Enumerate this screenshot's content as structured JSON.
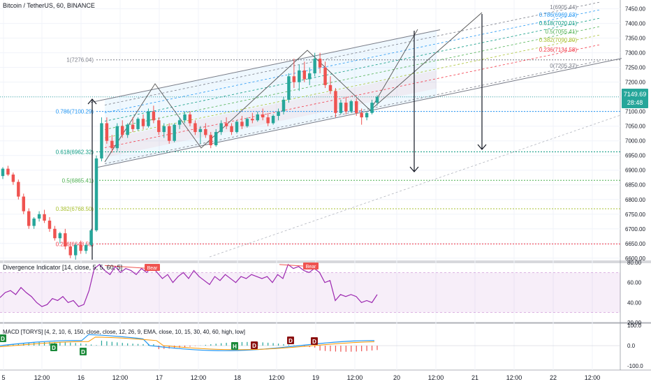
{
  "header": {
    "title": "Bitcoin / TetherUS, 60, BINANCE"
  },
  "price_badge": {
    "value": "7149.69",
    "timer": "28:48"
  },
  "colors": {
    "up": "#26a69a",
    "down": "#ef5350",
    "rsi": "#9c27b0",
    "macd": "#2196f3",
    "signal": "#ff9800",
    "badge": "#26a69a"
  },
  "chart_data": [
    {
      "type": "candlestick",
      "title": "Bitcoin / TetherUS, 60, BINANCE",
      "ylim": [
        6590,
        7480
      ],
      "y_ticks": [
        "7450.00",
        "7400.00",
        "7350.00",
        "7300.00",
        "7250.00",
        "7200.00",
        "7150.00",
        "7100.00",
        "7050.00",
        "7000.00",
        "6950.00",
        "6900.00",
        "6850.00",
        "6800.00",
        "6750.00",
        "6700.00",
        "6650.00",
        "6600.00"
      ],
      "x_ticks": [
        "5",
        "12:00",
        "16",
        "12:00",
        "17",
        "12:00",
        "18",
        "12:00",
        "19",
        "12:00",
        "20",
        "12:00",
        "21",
        "12:00",
        "22",
        "12:00"
      ],
      "candles": [
        [
          6880,
          6910,
          6870,
          6905
        ],
        [
          6905,
          6915,
          6880,
          6885
        ],
        [
          6885,
          6892,
          6850,
          6860
        ],
        [
          6860,
          6868,
          6800,
          6810
        ],
        [
          6810,
          6820,
          6750,
          6760
        ],
        [
          6760,
          6770,
          6700,
          6710
        ],
        [
          6710,
          6740,
          6700,
          6735
        ],
        [
          6735,
          6760,
          6725,
          6750
        ],
        [
          6750,
          6765,
          6720,
          6728
        ],
        [
          6728,
          6740,
          6690,
          6700
        ],
        [
          6700,
          6710,
          6660,
          6668
        ],
        [
          6668,
          6690,
          6650,
          6685
        ],
        [
          6685,
          6700,
          6630,
          6640
        ],
        [
          6640,
          6655,
          6600,
          6610
        ],
        [
          6610,
          6650,
          6595,
          6645
        ],
        [
          6645,
          6660,
          6615,
          6625
        ],
        [
          6625,
          6650,
          6615,
          6645
        ],
        [
          6645,
          6700,
          6640,
          6695
        ],
        [
          6695,
          6950,
          6690,
          6940
        ],
        [
          6940,
          7080,
          6930,
          7060
        ],
        [
          7060,
          7080,
          6990,
          7000
        ],
        [
          7000,
          7020,
          6960,
          6975
        ],
        [
          6975,
          7060,
          6965,
          7050
        ],
        [
          7050,
          7070,
          7010,
          7020
        ],
        [
          7020,
          7060,
          7010,
          7055
        ],
        [
          7055,
          7080,
          7030,
          7040
        ],
        [
          7040,
          7080,
          7035,
          7075
        ],
        [
          7075,
          7090,
          7040,
          7050
        ],
        [
          7050,
          7110,
          7045,
          7100
        ],
        [
          7100,
          7120,
          7060,
          7070
        ],
        [
          7070,
          7080,
          7020,
          7030
        ],
        [
          7030,
          7060,
          7010,
          7050
        ],
        [
          7050,
          7060,
          6990,
          7000
        ],
        [
          7000,
          7060,
          6995,
          7055
        ],
        [
          7055,
          7080,
          7040,
          7070
        ],
        [
          7070,
          7100,
          7060,
          7090
        ],
        [
          7090,
          7100,
          7050,
          7060
        ],
        [
          7060,
          7070,
          7020,
          7030
        ],
        [
          7030,
          7050,
          6990,
          7040
        ],
        [
          7040,
          7060,
          7010,
          7020
        ],
        [
          7020,
          7030,
          6975,
          6985
        ],
        [
          6985,
          7040,
          6980,
          7030
        ],
        [
          7030,
          7070,
          7020,
          7060
        ],
        [
          7060,
          7080,
          7040,
          7050
        ],
        [
          7050,
          7060,
          7020,
          7030
        ],
        [
          7030,
          7070,
          7025,
          7065
        ],
        [
          7065,
          7085,
          7040,
          7050
        ],
        [
          7050,
          7080,
          7045,
          7075
        ],
        [
          7075,
          7095,
          7060,
          7070
        ],
        [
          7070,
          7100,
          7065,
          7090
        ],
        [
          7090,
          7110,
          7070,
          7080
        ],
        [
          7080,
          7095,
          7050,
          7060
        ],
        [
          7060,
          7090,
          7055,
          7085
        ],
        [
          7085,
          7110,
          7070,
          7100
        ],
        [
          7100,
          7150,
          7090,
          7140
        ],
        [
          7140,
          7230,
          7130,
          7220
        ],
        [
          7220,
          7280,
          7180,
          7200
        ],
        [
          7200,
          7260,
          7170,
          7240
        ],
        [
          7240,
          7270,
          7200,
          7210
        ],
        [
          7210,
          7250,
          7190,
          7230
        ],
        [
          7230,
          7300,
          7220,
          7280
        ],
        [
          7280,
          7300,
          7230,
          7250
        ],
        [
          7250,
          7270,
          7180,
          7190
        ],
        [
          7190,
          7220,
          7160,
          7170
        ],
        [
          7170,
          7180,
          7080,
          7095
        ],
        [
          7095,
          7140,
          7090,
          7130
        ],
        [
          7130,
          7150,
          7090,
          7100
        ],
        [
          7100,
          7140,
          7095,
          7135
        ],
        [
          7135,
          7145,
          7085,
          7095
        ],
        [
          7095,
          7110,
          7055,
          7080
        ],
        [
          7080,
          7100,
          7070,
          7095
        ],
        [
          7095,
          7140,
          7090,
          7130
        ],
        [
          7130,
          7155,
          7120,
          7150
        ]
      ],
      "hlines": [
        {
          "label": "1(7276.04)",
          "value": 7276.04,
          "color": "#787b86"
        },
        {
          "label": "0.786(7100.29)",
          "value": 7100.29,
          "color": "#2196f3"
        },
        {
          "label": "0.618(6962.32)",
          "value": 6962.32,
          "color": "#089981"
        },
        {
          "label": "0.5(6865.41)",
          "value": 6865.41,
          "color": "#4caf50"
        },
        {
          "label": "0.382(6768.50)",
          "value": 6768.5,
          "color": "#a8c030"
        },
        {
          "label": "0.236(6648.59)",
          "value": 6648.59,
          "color": "#f23645"
        }
      ],
      "channel_levels": [
        {
          "label": "1(6905.44)",
          "offset": 8,
          "color": "#787b86"
        },
        {
          "label": "0.786(6969.63)",
          "offset": 19,
          "color": "#2196f3"
        },
        {
          "label": "0.618(7020.01)",
          "offset": 31,
          "color": "#089981"
        },
        {
          "label": "0.5(7055.41)",
          "offset": 43,
          "color": "#4caf50"
        },
        {
          "label": "0.382(7090.80)",
          "offset": 55,
          "color": "#a8c030"
        },
        {
          "label": "0.236(7134.58)",
          "offset": 69,
          "color": "#f23645"
        },
        {
          "label": "0(7205.37)",
          "offset": 92,
          "color": "#787b86"
        }
      ]
    },
    {
      "type": "line",
      "title": "Divergence Indicator [14, close, 5, 5, 60, 5]",
      "ylim": [
        20,
        80
      ],
      "y_ticks": [
        "80.00",
        "60.00",
        "40.00",
        "20.00"
      ],
      "band": [
        30,
        70
      ],
      "annotations": [
        "Bear",
        "Bear"
      ],
      "values": [
        45,
        50,
        52,
        48,
        55,
        50,
        46,
        40,
        36,
        38,
        44,
        42,
        46,
        40,
        42,
        36,
        38,
        52,
        74,
        78,
        72,
        68,
        76,
        70,
        74,
        72,
        68,
        74,
        70,
        76,
        70,
        64,
        68,
        60,
        66,
        70,
        64,
        72,
        66,
        62,
        58,
        66,
        62,
        68,
        64,
        60,
        66,
        64,
        68,
        66,
        64,
        66,
        60,
        68,
        64,
        78,
        74,
        76,
        72,
        70,
        74,
        70,
        60,
        62,
        42,
        48,
        46,
        48,
        46,
        40,
        42,
        40,
        48
      ]
    },
    {
      "type": "bar",
      "title": "MACD [TORYS] [4, 2, 10, 6, 150, close, close, 12, 26, 9, EMA, close, 10, 15, 30, 40, 60, high, low]",
      "ylim": [
        -120,
        110
      ],
      "y_ticks": [
        "100.0",
        "0.0",
        "-100.0"
      ],
      "markers": [
        "D",
        "D",
        "D",
        "H",
        "D",
        "D",
        "D"
      ]
    }
  ]
}
